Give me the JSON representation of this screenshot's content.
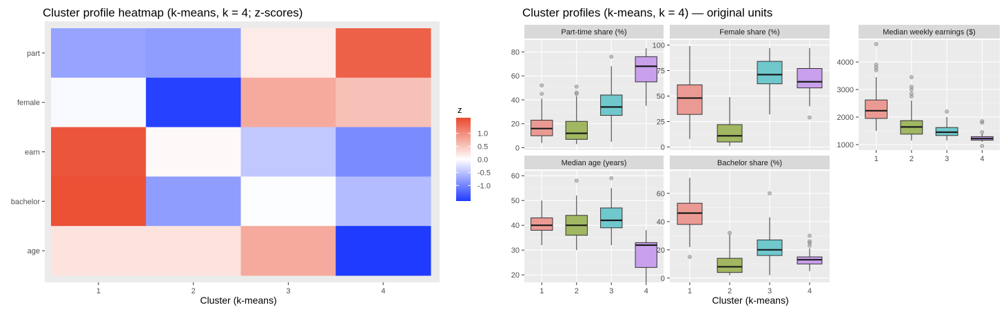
{
  "chart_data": [
    {
      "type": "heatmap",
      "title": "Cluster profile heatmap (k-means, k = 4; z-scores)",
      "xlabel": "Cluster (k-means)",
      "ylabel": "",
      "x_categories": [
        "1",
        "2",
        "3",
        "4"
      ],
      "y_categories": [
        "part",
        "female",
        "earn",
        "bachelor",
        "age"
      ],
      "values": [
        [
          -0.75,
          -0.8,
          0.18,
          1.4
        ],
        [
          -0.05,
          -1.55,
          0.75,
          0.55
        ],
        [
          1.5,
          0.05,
          -0.45,
          -0.95
        ],
        [
          1.55,
          -0.8,
          -0.02,
          -0.55
        ],
        [
          0.25,
          0.25,
          0.75,
          -1.6
        ]
      ],
      "legend": {
        "title": "z",
        "ticks": [
          1.0,
          0.5,
          0.0,
          -0.5,
          -1.0
        ],
        "tick_labels": [
          "1.0",
          "0.5",
          "0.0",
          "-0.5",
          "-1.0"
        ],
        "range": [
          -1.6,
          1.6
        ],
        "low_color": "#1f3bff",
        "mid_color": "#ffffff",
        "high_color": "#ea4a2e"
      },
      "colors": {
        "panel_bg": "#ebebeb"
      }
    },
    {
      "type": "boxplot",
      "title": "Cluster profiles (k-means, k = 4) — original units",
      "xlabel": "Cluster (k-means)",
      "categories": [
        "1",
        "2",
        "3",
        "4"
      ],
      "cluster_colors": [
        "#eb9a93",
        "#a1b761",
        "#6fc8cc",
        "#c8a0ec"
      ],
      "panels": [
        {
          "title": "Part-time share (%)",
          "ylim": [
            -2,
            90
          ],
          "yticks": [
            0,
            20,
            40,
            60,
            80
          ],
          "ytick_labels": [
            "0",
            "20",
            "40",
            "60",
            "80"
          ],
          "boxes": [
            {
              "min": 4,
              "q1": 10,
              "median": 16,
              "q3": 23,
              "max": 41,
              "outliers": [
                45,
                52
              ]
            },
            {
              "min": 3,
              "q1": 7,
              "median": 12,
              "q3": 22,
              "max": 43,
              "outliers": [
                45,
                46,
                51
              ]
            },
            {
              "min": 5,
              "q1": 27,
              "median": 34,
              "q3": 44,
              "max": 68,
              "outliers": [
                76
              ]
            },
            {
              "min": 35,
              "q1": 55,
              "median": 68,
              "q3": 76,
              "max": 83,
              "outliers": []
            }
          ]
        },
        {
          "title": "Female share (%)",
          "ylim": [
            -3,
            105
          ],
          "yticks": [
            0,
            25,
            50,
            75,
            100
          ],
          "ytick_labels": [
            "0",
            "25",
            "50",
            "75",
            "100"
          ],
          "boxes": [
            {
              "min": 8,
              "q1": 32,
              "median": 48,
              "q3": 61,
              "max": 99,
              "outliers": []
            },
            {
              "min": 1,
              "q1": 5,
              "median": 11,
              "q3": 22,
              "max": 49,
              "outliers": []
            },
            {
              "min": 32,
              "q1": 62,
              "median": 71,
              "q3": 84,
              "max": 97,
              "outliers": []
            },
            {
              "min": 40,
              "q1": 58,
              "median": 64,
              "q3": 77,
              "max": 97,
              "outliers": [
                29
              ]
            }
          ]
        },
        {
          "title": "Median weekly earnings ($)",
          "ylim": [
            800,
            4800
          ],
          "yticks": [
            1000,
            2000,
            3000,
            4000
          ],
          "ytick_labels": [
            "1000",
            "2000",
            "3000",
            "4000"
          ],
          "boxes": [
            {
              "min": 1500,
              "q1": 1950,
              "median": 2230,
              "q3": 2620,
              "max": 3450,
              "outliers": [
                3700,
                3800,
                3900,
                4650
              ]
            },
            {
              "min": 1150,
              "q1": 1380,
              "median": 1640,
              "q3": 1870,
              "max": 2600,
              "outliers": [
                2750,
                2850,
                3000,
                3100,
                3450
              ]
            },
            {
              "min": 1150,
              "q1": 1330,
              "median": 1450,
              "q3": 1620,
              "max": 2000,
              "outliers": [
                2200
              ]
            },
            {
              "min": 1100,
              "q1": 1160,
              "median": 1220,
              "q3": 1290,
              "max": 1400,
              "outliers": [
                950,
                1450,
                1800,
                1850
              ]
            }
          ]
        },
        {
          "title": "Median age (years)",
          "ylim": [
            17,
            62
          ],
          "yticks": [
            20,
            30,
            40,
            50,
            60
          ],
          "ytick_labels": [
            "20",
            "30",
            "40",
            "50",
            "60"
          ],
          "boxes": [
            {
              "min": 32,
              "q1": 38,
              "median": 40,
              "q3": 43,
              "max": 50,
              "outliers": []
            },
            {
              "min": 30,
              "q1": 36,
              "median": 40,
              "q3": 44,
              "max": 52,
              "outliers": [
                58
              ]
            },
            {
              "min": 32,
              "q1": 39,
              "median": 42,
              "q3": 47,
              "max": 55,
              "outliers": [
                59
              ]
            },
            {
              "min": 17,
              "q1": 23,
              "median": 32,
              "q3": 33,
              "max": 38,
              "outliers": []
            }
          ]
        },
        {
          "title": "Bachelor share (%)",
          "ylim": [
            -3,
            76
          ],
          "yticks": [
            0,
            20,
            40,
            60
          ],
          "ytick_labels": [
            "0",
            "20",
            "40",
            "60"
          ],
          "boxes": [
            {
              "min": 22,
              "q1": 38,
              "median": 46,
              "q3": 53,
              "max": 71,
              "outliers": [
                15
              ]
            },
            {
              "min": 2,
              "q1": 4,
              "median": 8,
              "q3": 14,
              "max": 31,
              "outliers": [
                32
              ]
            },
            {
              "min": 2,
              "q1": 16,
              "median": 20,
              "q3": 27,
              "max": 43,
              "outliers": [
                60
              ]
            },
            {
              "min": 5,
              "q1": 10,
              "median": 13,
              "q3": 15,
              "max": 21,
              "outliers": [
                23,
                25,
                26,
                30
              ]
            }
          ]
        }
      ],
      "colors": {
        "panel_bg": "#ebebeb",
        "strip_bg": "#d9d9d9"
      }
    }
  ]
}
